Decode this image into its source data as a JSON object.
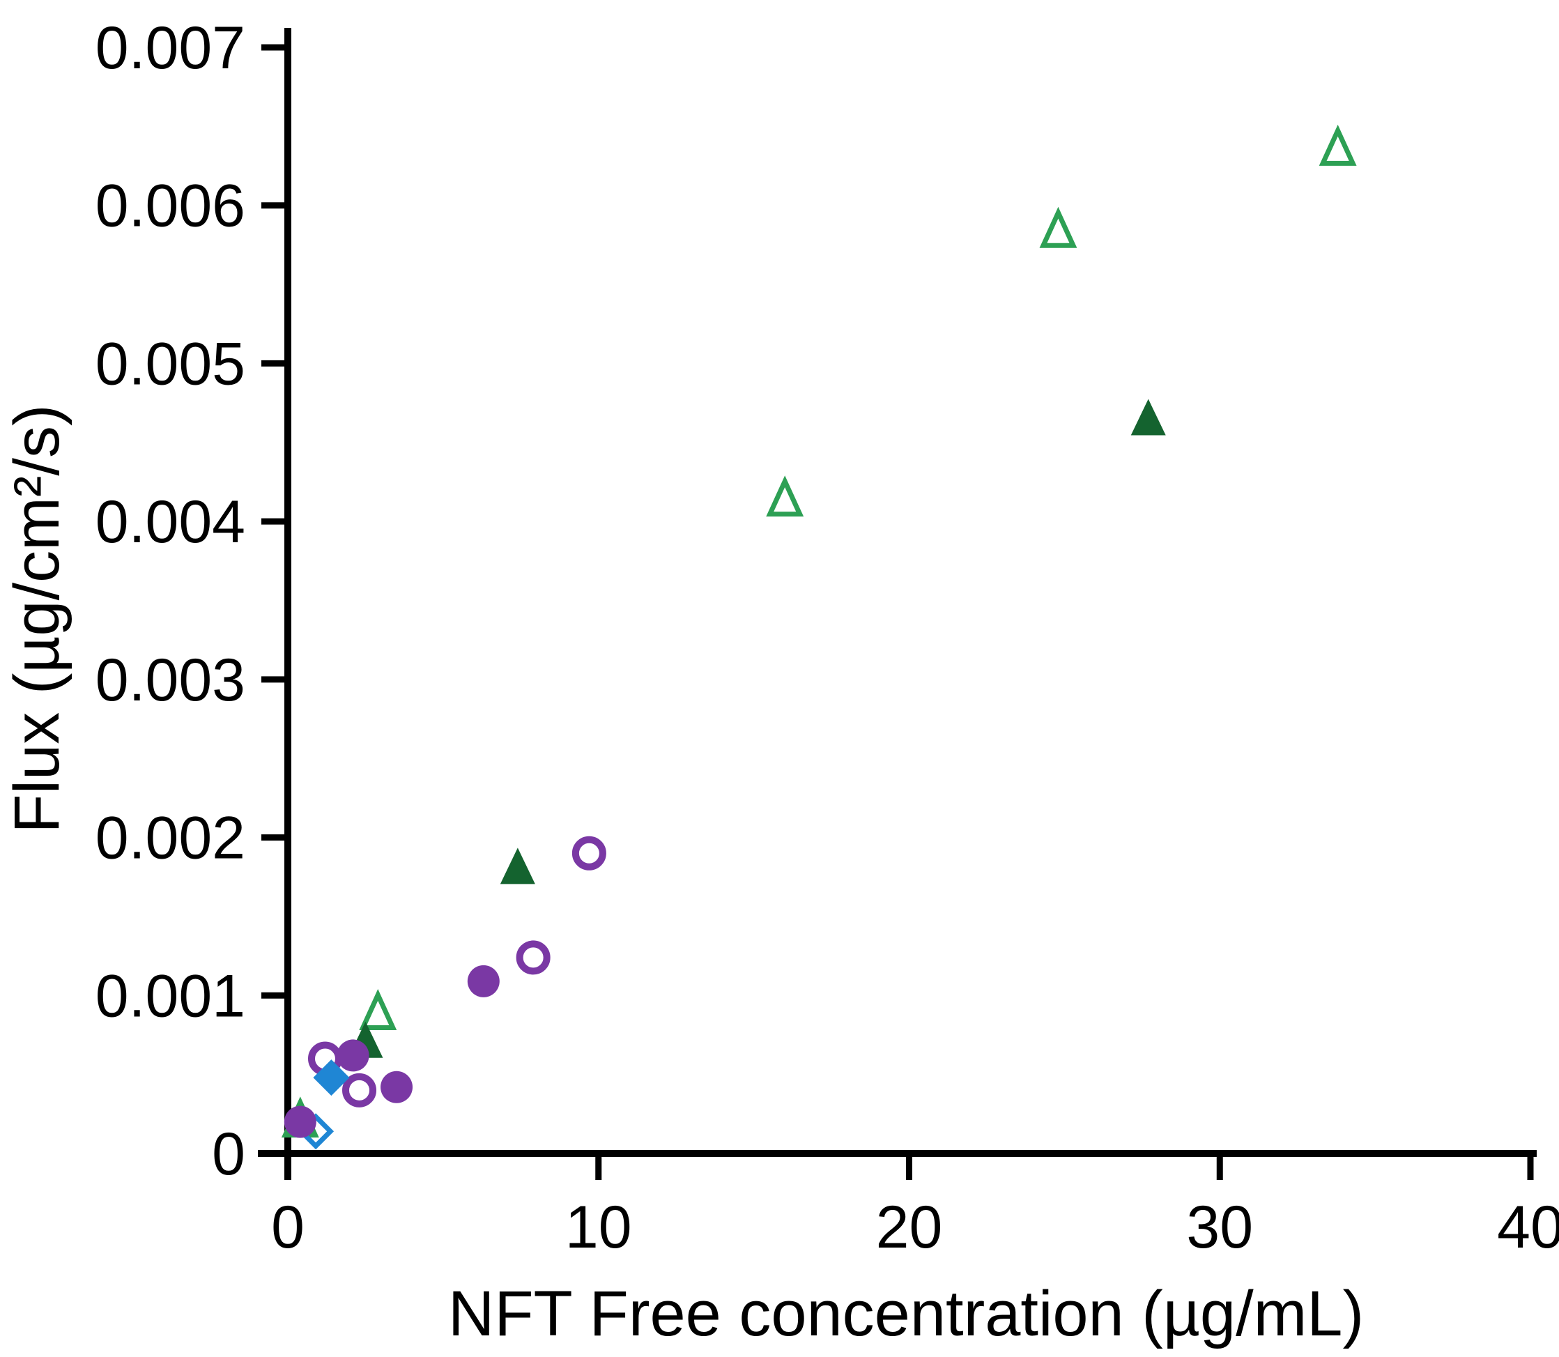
{
  "chart_data": {
    "type": "scatter",
    "title": "",
    "xlabel": "NFT Free concentration (µg/mL)",
    "ylabel": "Flux (µg/cm²/s)",
    "xlim": [
      0,
      40
    ],
    "ylim": [
      0,
      0.007
    ],
    "x_ticks": [
      0,
      10,
      20,
      30,
      40
    ],
    "x_tick_labels": [
      "0",
      "10",
      "20",
      "30",
      "40"
    ],
    "y_ticks": [
      0,
      0.001,
      0.002,
      0.003,
      0.004,
      0.005,
      0.006,
      0.007
    ],
    "y_tick_labels": [
      "0",
      "0.001",
      "0.002",
      "0.003",
      "0.004",
      "0.005",
      "0.006",
      "0.007"
    ],
    "grid": false,
    "legend": "none",
    "axis_color": "#000000",
    "series": [
      {
        "name": "open-green-triangles",
        "marker": "triangle",
        "fill": "open",
        "color": "#2DA054",
        "points": [
          [
            0.4,
            0.00022
          ],
          [
            2.9,
            0.0009
          ],
          [
            16.0,
            0.00415
          ],
          [
            24.8,
            0.00585
          ],
          [
            33.8,
            0.00637
          ]
        ]
      },
      {
        "name": "filled-green-triangles",
        "marker": "triangle",
        "fill": "solid",
        "color": "#14632F",
        "points": [
          [
            2.5,
            0.00072
          ],
          [
            7.4,
            0.00182
          ],
          [
            27.7,
            0.00466
          ]
        ]
      },
      {
        "name": "open-purple-circles",
        "marker": "circle",
        "fill": "open",
        "color": "#7A38A4",
        "points": [
          [
            1.2,
            0.0006
          ],
          [
            2.3,
            0.0004
          ],
          [
            7.9,
            0.00124
          ],
          [
            9.7,
            0.0019
          ]
        ]
      },
      {
        "name": "open-blue-diamonds",
        "marker": "diamond",
        "fill": "open",
        "color": "#1F86D4",
        "points": [
          [
            0.9,
            0.00014
          ]
        ]
      },
      {
        "name": "filled-blue-diamonds",
        "marker": "diamond",
        "fill": "solid",
        "color": "#1F86D4",
        "points": [
          [
            1.4,
            0.00048
          ]
        ]
      },
      {
        "name": "filled-purple-circles",
        "marker": "circle",
        "fill": "solid",
        "color": "#7A38A4",
        "points": [
          [
            0.4,
            0.0002
          ],
          [
            2.1,
            0.00062
          ],
          [
            3.5,
            0.00042
          ],
          [
            6.3,
            0.00109
          ]
        ]
      }
    ]
  }
}
